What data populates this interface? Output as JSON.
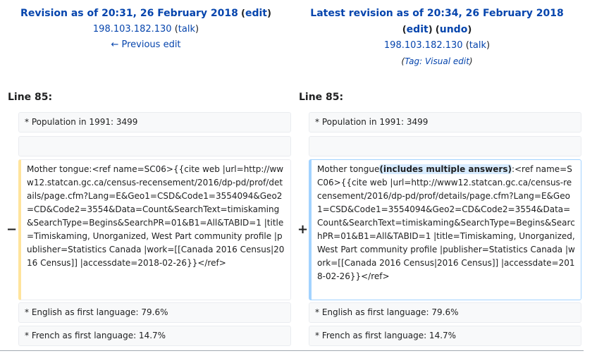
{
  "left": {
    "title_text": "Revision as of 20:31, 26 February 2018",
    "edit_label": "edit",
    "user": "198.103.182.130",
    "talk_label": "talk",
    "prev_label": "← Previous edit",
    "line_label": "Line 85:"
  },
  "right": {
    "title_text": "Latest revision as of 20:34, 26 February 2018",
    "edit_label": "edit",
    "undo_label": "undo",
    "user": "198.103.182.130",
    "talk_label": "talk",
    "tag_prefix": "Tag: ",
    "tag_link": "Visual edit",
    "line_label": "Line 85:"
  },
  "diff": {
    "context1": "* Population in 1991: 3499",
    "context2": "",
    "del_marker": "−",
    "ins_marker": "+",
    "deleted_text": "Mother tongue:<ref name=SC06>{{cite web |url=http://www12.statcan.gc.ca/census-recensement/2016/dp-pd/prof/details/page.cfm?Lang=E&Geo1=CSD&Code1=3554094&Geo2=CD&Code2=3554&Data=Count&SearchText=timiskaming&SearchType=Begins&SearchPR=01&B1=All&TABID=1 |title=Timiskaming, Unorganized, West Part community profile |publisher=Statistics Canada |work=[[Canada 2016 Census|2016 Census]] |accessdate=2018-02-26}}</ref>",
    "inserted_before": "Mother tongue",
    "inserted_highlight": "(includes multiple answers)",
    "inserted_after": ":<ref name=SC06>{{cite web |url=http://www12.statcan.gc.ca/census-recensement/2016/dp-pd/prof/details/page.cfm?Lang=E&Geo1=CSD&Code1=3554094&Geo2=CD&Code2=3554&Data=Count&SearchText=timiskaming&SearchType=Begins&SearchPR=01&B1=All&TABID=1 |title=Timiskaming, Unorganized, West Part community profile |publisher=Statistics Canada |work=[[Canada 2016 Census|2016 Census]] |accessdate=2018-02-26}}</ref>",
    "context3": "* English as first language: 79.6%",
    "context4": "* French as first language: 14.7%"
  }
}
